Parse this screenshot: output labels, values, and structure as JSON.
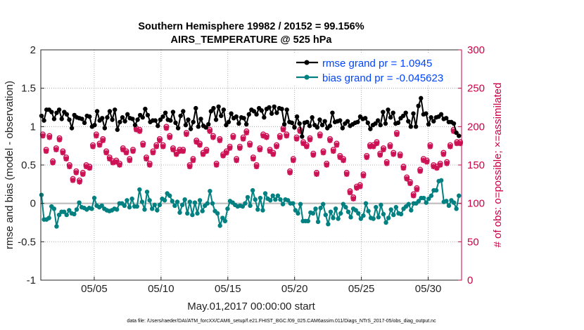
{
  "chart_data": {
    "type": "line",
    "title": "Southern Hemisphere 19982 / 20152 = 99.156%",
    "subtitle": "AIRS_TEMPERATURE @ 525 hPa",
    "xlabel": "May.01,2017 00:00:00 start",
    "ylabel": "rmse and bias (model - observation)",
    "ylabel_right": "# of obs: o=possible; ×=assimilated",
    "xlim": [
      0,
      31.5
    ],
    "ylim": [
      -1,
      2
    ],
    "ylim_right": [
      0,
      300
    ],
    "x_ticks": [
      4,
      9,
      14,
      19,
      24,
      29
    ],
    "x_tick_labels": [
      "05/05",
      "05/10",
      "05/15",
      "05/20",
      "05/25",
      "05/30"
    ],
    "y_ticks": [
      -1,
      -0.5,
      0,
      0.5,
      1,
      1.5,
      2
    ],
    "y_tick_labels": [
      "-1",
      "-0.5",
      "0",
      "0.5",
      "1",
      "1.5",
      "2"
    ],
    "y_ticks_right": [
      0,
      50,
      100,
      150,
      200,
      250,
      300
    ],
    "y_tick_labels_right": [
      "0",
      "50",
      "100",
      "150",
      "200",
      "250",
      "300"
    ],
    "legend": {
      "position": "top-right",
      "entries": [
        "rmse grand pr = 1.0945",
        "bias grand pr = -0.045623"
      ]
    },
    "series": [
      {
        "name": "rmse",
        "color": "#000000",
        "values": [
          1.14,
          1.08,
          1.22,
          1.22,
          1.19,
          1.1,
          1.18,
          1.22,
          1.1,
          1.19,
          1.16,
          1.09,
          0.98,
          1.15,
          1.12,
          1.11,
          1.1,
          1.05,
          1.14,
          1.13,
          1.0,
          1.02,
          1.2,
          1.08,
          1.11,
          0.98,
          1.12,
          1.2,
          1.09,
          1.22,
          0.96,
          1.06,
          1.12,
          1.07,
          1.16,
          1.11,
          1.1,
          1.02,
          1.09,
          1.15,
          1.12,
          1.23,
          1.15,
          1.06,
          1.08,
          1.08,
          1.01,
          1.09,
          1.13,
          1.18,
          1.09,
          1.08,
          1.19,
          1.05,
          0.98,
          1.14,
          1.2,
          1.02,
          1.09,
          0.97,
          1.06,
          1.24,
          1.0,
          1.1,
          1.01,
          0.99,
          1.03,
          1.2,
          1.24,
          1.09,
          1.26,
          1.14,
          1.22,
          1.02,
          1.06,
          1.17,
          1.11,
          1.13,
          1.04,
          1.12,
          1.11,
          1.03,
          1.16,
          1.22,
          1.2,
          1.16,
          1.24,
          1.21,
          1.12,
          1.23,
          1.25,
          1.17,
          1.26,
          1.18,
          1.24,
          1.23,
          1.03,
          1.22,
          1.06,
          1.05,
          0.99,
          1.13,
          1.04,
          0.87,
          1.05,
          1.06,
          1.01,
          1.12,
          1.02,
          0.99,
          1.09,
          1.02,
          1.07,
          0.98,
          1.01,
          1.18,
          1.06,
          1.07,
          1.08,
          0.98,
          1.04,
          1.07,
          1.01,
          1.03,
          1.05,
          1.06,
          1.13,
          1.1,
          1.11,
          1.05,
          0.97,
          1.02,
          1.04,
          1.08,
          1.02,
          1.19,
          1.04,
          1.22,
          1.12,
          1.18,
          1.04,
          1.05,
          1.11,
          1.14,
          1.18,
          1.07,
          1.0,
          1.17,
          1.0,
          1.27,
          1.37,
          1.16,
          1.17,
          1.03,
          1.12,
          1.07,
          1.12,
          1.13,
          1.16,
          1.1,
          1.11,
          1.06,
          1.06,
          1.04,
          0.92,
          0.88
        ]
      },
      {
        "name": "bias",
        "color": "#008080",
        "values": [
          0.11,
          -0.21,
          -0.21,
          -0.19,
          -0.04,
          -0.07,
          -0.3,
          -0.15,
          -0.11,
          -0.11,
          -0.15,
          -0.09,
          -0.13,
          -0.14,
          -0.08,
          0.01,
          -0.05,
          -0.06,
          -0.08,
          -0.06,
          -0.07,
          0.07,
          -0.03,
          -0.05,
          -0.03,
          -0.07,
          -0.09,
          -0.1,
          -0.09,
          -0.07,
          -0.08,
          0.0,
          0.0,
          -0.03,
          0.04,
          -0.05,
          0.06,
          -0.04,
          -0.04,
          0.18,
          0.02,
          -0.08,
          0.15,
          0.04,
          -0.07,
          -0.02,
          -0.09,
          -0.02,
          0.06,
          0.04,
          0.13,
          0.1,
          0.03,
          -0.03,
          0.02,
          -0.12,
          -0.02,
          0.05,
          -0.13,
          0.02,
          -0.15,
          0.01,
          -0.13,
          0.04,
          -0.1,
          -0.03,
          0.0,
          0.16,
          0.0,
          -0.1,
          -0.13,
          -0.29,
          -0.19,
          -0.23,
          -0.07,
          0.03,
          0.01,
          -0.02,
          -0.04,
          -0.03,
          -0.04,
          0.0,
          0.08,
          -0.03,
          0.17,
          0.05,
          -0.08,
          0.07,
          -0.09,
          0.13,
          0.06,
          0.04,
          0.1,
          0.05,
          0.1,
          0.05,
          -0.01,
          0.05,
          0.04,
          0.0,
          0.0,
          -0.09,
          -0.13,
          -0.01,
          -0.23,
          -0.23,
          -0.23,
          -0.12,
          -0.13,
          -0.07,
          -0.24,
          -0.06,
          -0.01,
          -0.15,
          -0.27,
          -0.11,
          -0.19,
          -0.07,
          -0.2,
          -0.13,
          -0.01,
          -0.05,
          -0.11,
          -0.18,
          -0.07,
          -0.09,
          -0.13,
          -0.2,
          -0.16,
          0.0,
          -0.1,
          -0.19,
          -0.2,
          -0.05,
          -0.18,
          -0.02,
          -0.14,
          -0.25,
          -0.19,
          -0.08,
          -0.15,
          -0.05,
          -0.13,
          -0.14,
          -0.07,
          -0.04,
          -0.01,
          -0.09,
          0.0,
          0.0,
          0.03,
          0.07,
          0.07,
          0.01,
          0.06,
          0.1,
          0.17,
          0.17,
          0.29,
          0.3,
          0.02,
          0.03,
          -0.03,
          0.04,
          0.01,
          -0.07,
          0.1
        ]
      },
      {
        "name": "obs possible",
        "color": "#cc1155",
        "marker": "o",
        "x": [
          0.15,
          0.4,
          0.65,
          0.9,
          1.15,
          1.4,
          1.65,
          1.9,
          2.15,
          2.4,
          2.65,
          2.9,
          3.15,
          3.4,
          3.65,
          3.9,
          4.15,
          4.4,
          4.65,
          4.9,
          5.15,
          5.4,
          5.65,
          5.9,
          6.15,
          6.4,
          6.65,
          6.9,
          7.15,
          7.4,
          7.65,
          7.9,
          8.15,
          8.4,
          8.65,
          8.9,
          9.15,
          9.4,
          9.65,
          9.9,
          10.15,
          10.4,
          10.65,
          10.9,
          11.15,
          11.4,
          11.65,
          11.9,
          12.15,
          12.4,
          12.65,
          12.9,
          13.15,
          13.4,
          13.65,
          13.9,
          14.15,
          14.4,
          14.65,
          14.9,
          15.15,
          15.4,
          15.65,
          15.9,
          16.15,
          16.4,
          16.65,
          16.9,
          17.15,
          17.4,
          17.65,
          17.9,
          18.15,
          18.4,
          18.65,
          18.9,
          19.15,
          19.4,
          19.65,
          19.9,
          20.15,
          20.4,
          20.65,
          20.9,
          21.15,
          21.4,
          21.65,
          21.9,
          22.15,
          22.4,
          22.65,
          22.9,
          23.15,
          23.4,
          23.65,
          23.9,
          24.15,
          24.4,
          24.65,
          24.9,
          25.15,
          25.4,
          25.65,
          25.9,
          26.15,
          26.4,
          26.65,
          26.9,
          27.15,
          27.4,
          27.65,
          27.9,
          28.15,
          28.4,
          28.65,
          28.9,
          29.15,
          29.4,
          29.65,
          29.9,
          30.15,
          30.4,
          30.65,
          30.9,
          31.15,
          31.4
        ],
        "values": [
          190,
          170,
          188,
          155,
          172,
          185,
          168,
          160,
          150,
          132,
          142,
          130,
          140,
          150,
          148,
          176,
          190,
          178,
          184,
          168,
          160,
          155,
          156,
          152,
          172,
          168,
          158,
          170,
          198,
          196,
          178,
          160,
          152,
          168,
          176,
          184,
          176,
          200,
          188,
          172,
          166,
          170,
          170,
          192,
          150,
          158,
          182,
          178,
          166,
          170,
          196,
          188,
          152,
          184,
          164,
          168,
          174,
          188,
          158,
          174,
          186,
          194,
          178,
          160,
          150,
          172,
          190,
          188,
          170,
          166,
          176,
          188,
          198,
          190,
          142,
          158,
          186,
          196,
          180,
          176,
          185,
          165,
          140,
          190,
          168,
          152,
          184,
          170,
          178,
          162,
          158,
          140,
          116,
          108,
          122,
          124,
          138,
          162,
          176,
          176,
          180,
          165,
          172,
          154,
          176,
          166,
          192,
          164,
          148,
          134,
          128,
          112,
          120,
          144,
          158,
          156,
          176,
          150,
          148,
          152,
          166,
          154,
          176,
          196,
          180,
          180
        ]
      },
      {
        "name": "obs assimilated",
        "color": "#cc1155",
        "marker": "x",
        "x": [
          0.15,
          0.4,
          0.65,
          0.9,
          1.15,
          1.4,
          1.65,
          1.9,
          2.15,
          2.4,
          2.65,
          2.9,
          3.15,
          3.4,
          3.65,
          3.9,
          4.15,
          4.4,
          4.65,
          4.9,
          5.15,
          5.4,
          5.65,
          5.9,
          6.15,
          6.4,
          6.65,
          6.9,
          7.15,
          7.4,
          7.65,
          7.9,
          8.15,
          8.4,
          8.65,
          8.9,
          9.15,
          9.4,
          9.65,
          9.9,
          10.15,
          10.4,
          10.65,
          10.9,
          11.15,
          11.4,
          11.65,
          11.9,
          12.15,
          12.4,
          12.65,
          12.9,
          13.15,
          13.4,
          13.65,
          13.9,
          14.15,
          14.4,
          14.65,
          14.9,
          15.15,
          15.4,
          15.65,
          15.9,
          16.15,
          16.4,
          16.65,
          16.9,
          17.15,
          17.4,
          17.65,
          17.9,
          18.15,
          18.4,
          18.65,
          18.9,
          19.15,
          19.4,
          19.65,
          19.9,
          20.15,
          20.4,
          20.65,
          20.9,
          21.15,
          21.4,
          21.65,
          21.9,
          22.15,
          22.4,
          22.65,
          22.9,
          23.15,
          23.4,
          23.65,
          23.9,
          24.15,
          24.4,
          24.65,
          24.9,
          25.15,
          25.4,
          25.65,
          25.9,
          26.15,
          26.4,
          26.65,
          26.9,
          27.15,
          27.4,
          27.65,
          27.9,
          28.15,
          28.4,
          28.65,
          28.9,
          29.15,
          29.4,
          29.65,
          29.9,
          30.15,
          30.4,
          30.65,
          30.9,
          31.15,
          31.4
        ],
        "values": [
          188,
          168,
          186,
          153,
          170,
          183,
          166,
          158,
          148,
          130,
          140,
          128,
          138,
          148,
          146,
          174,
          188,
          176,
          182,
          166,
          158,
          153,
          154,
          150,
          170,
          166,
          156,
          168,
          196,
          194,
          176,
          158,
          150,
          166,
          174,
          182,
          174,
          198,
          186,
          170,
          164,
          168,
          168,
          190,
          148,
          156,
          180,
          176,
          164,
          168,
          194,
          186,
          150,
          182,
          162,
          166,
          172,
          186,
          156,
          172,
          184,
          192,
          176,
          158,
          148,
          170,
          188,
          186,
          168,
          164,
          174,
          186,
          196,
          188,
          140,
          156,
          184,
          194,
          178,
          174,
          183,
          163,
          138,
          188,
          166,
          150,
          182,
          168,
          176,
          160,
          156,
          138,
          114,
          106,
          120,
          122,
          136,
          160,
          174,
          174,
          178,
          163,
          170,
          152,
          174,
          164,
          190,
          162,
          146,
          132,
          126,
          110,
          118,
          142,
          156,
          154,
          174,
          148,
          146,
          150,
          164,
          152,
          174,
          194,
          178,
          178
        ]
      }
    ],
    "footer": "data file: /Users/raeder/DAI/ATM_forcXX/CAM6_setup/f.e21.FHIST_BGC.f09_025.CAM6assim.011/Diags_NTrS_2017-05/obs_diag_output.nc"
  }
}
